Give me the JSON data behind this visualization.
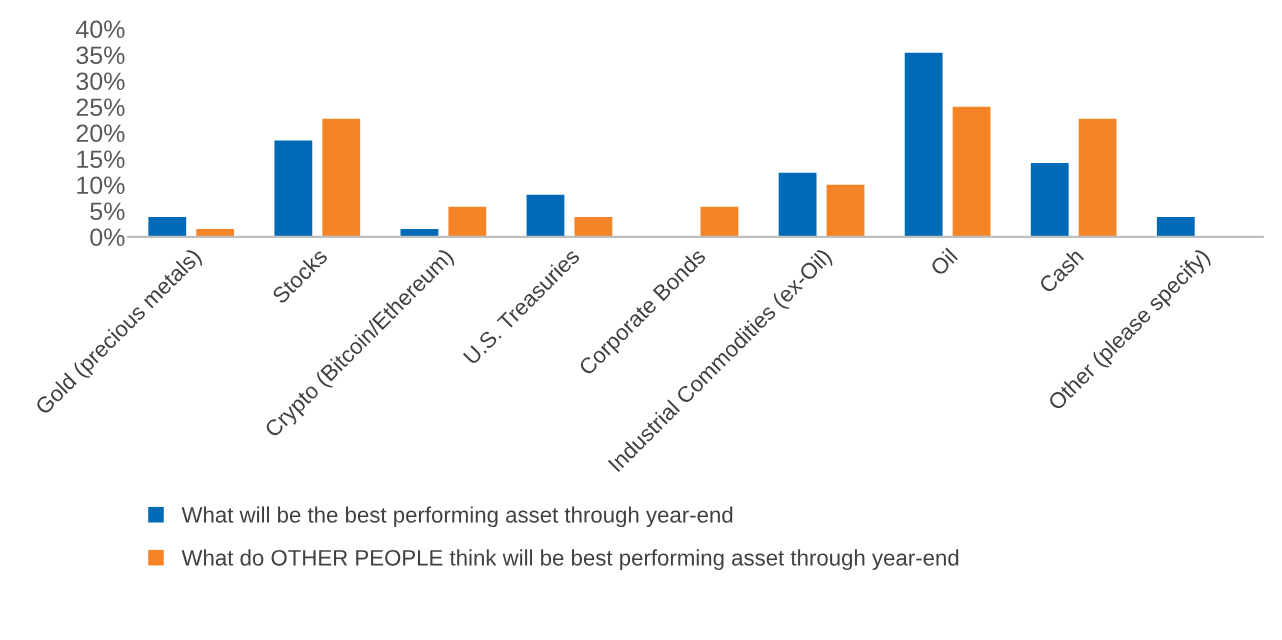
{
  "chart_data": {
    "type": "bar",
    "categories": [
      "Gold (precious metals)",
      "Stocks",
      "Crypto (Bitcoin/Ethereum)",
      "U.S. Treasuries",
      "Corporate Bonds",
      "Industrial Commodities (ex-Oil)",
      "Oil",
      "Cash",
      "Other (please specify)"
    ],
    "series": [
      {
        "name": "What will be the best performing asset through year-end",
        "color": "#006ab7",
        "values": [
          3.8,
          18.5,
          1.5,
          8.1,
          0,
          12.3,
          35.4,
          14.2,
          3.8
        ]
      },
      {
        "name": "What do OTHER PEOPLE think will be best performing asset through year-end",
        "color": "#f58426",
        "values": [
          1.5,
          22.7,
          5.8,
          3.8,
          5.8,
          10.0,
          25.0,
          22.7,
          0
        ]
      }
    ],
    "ylim": [
      0,
      40
    ],
    "yticks": [
      {
        "value": 0,
        "label": "0%"
      },
      {
        "value": 5,
        "label": "5%"
      },
      {
        "value": 10,
        "label": "10%"
      },
      {
        "value": 15,
        "label": "15%"
      },
      {
        "value": 20,
        "label": "20%"
      },
      {
        "value": 25,
        "label": "25%"
      },
      {
        "value": 30,
        "label": "30%"
      },
      {
        "value": 35,
        "label": "35%"
      },
      {
        "value": 40,
        "label": "40%"
      }
    ],
    "legend": "bottom",
    "grid": false
  }
}
